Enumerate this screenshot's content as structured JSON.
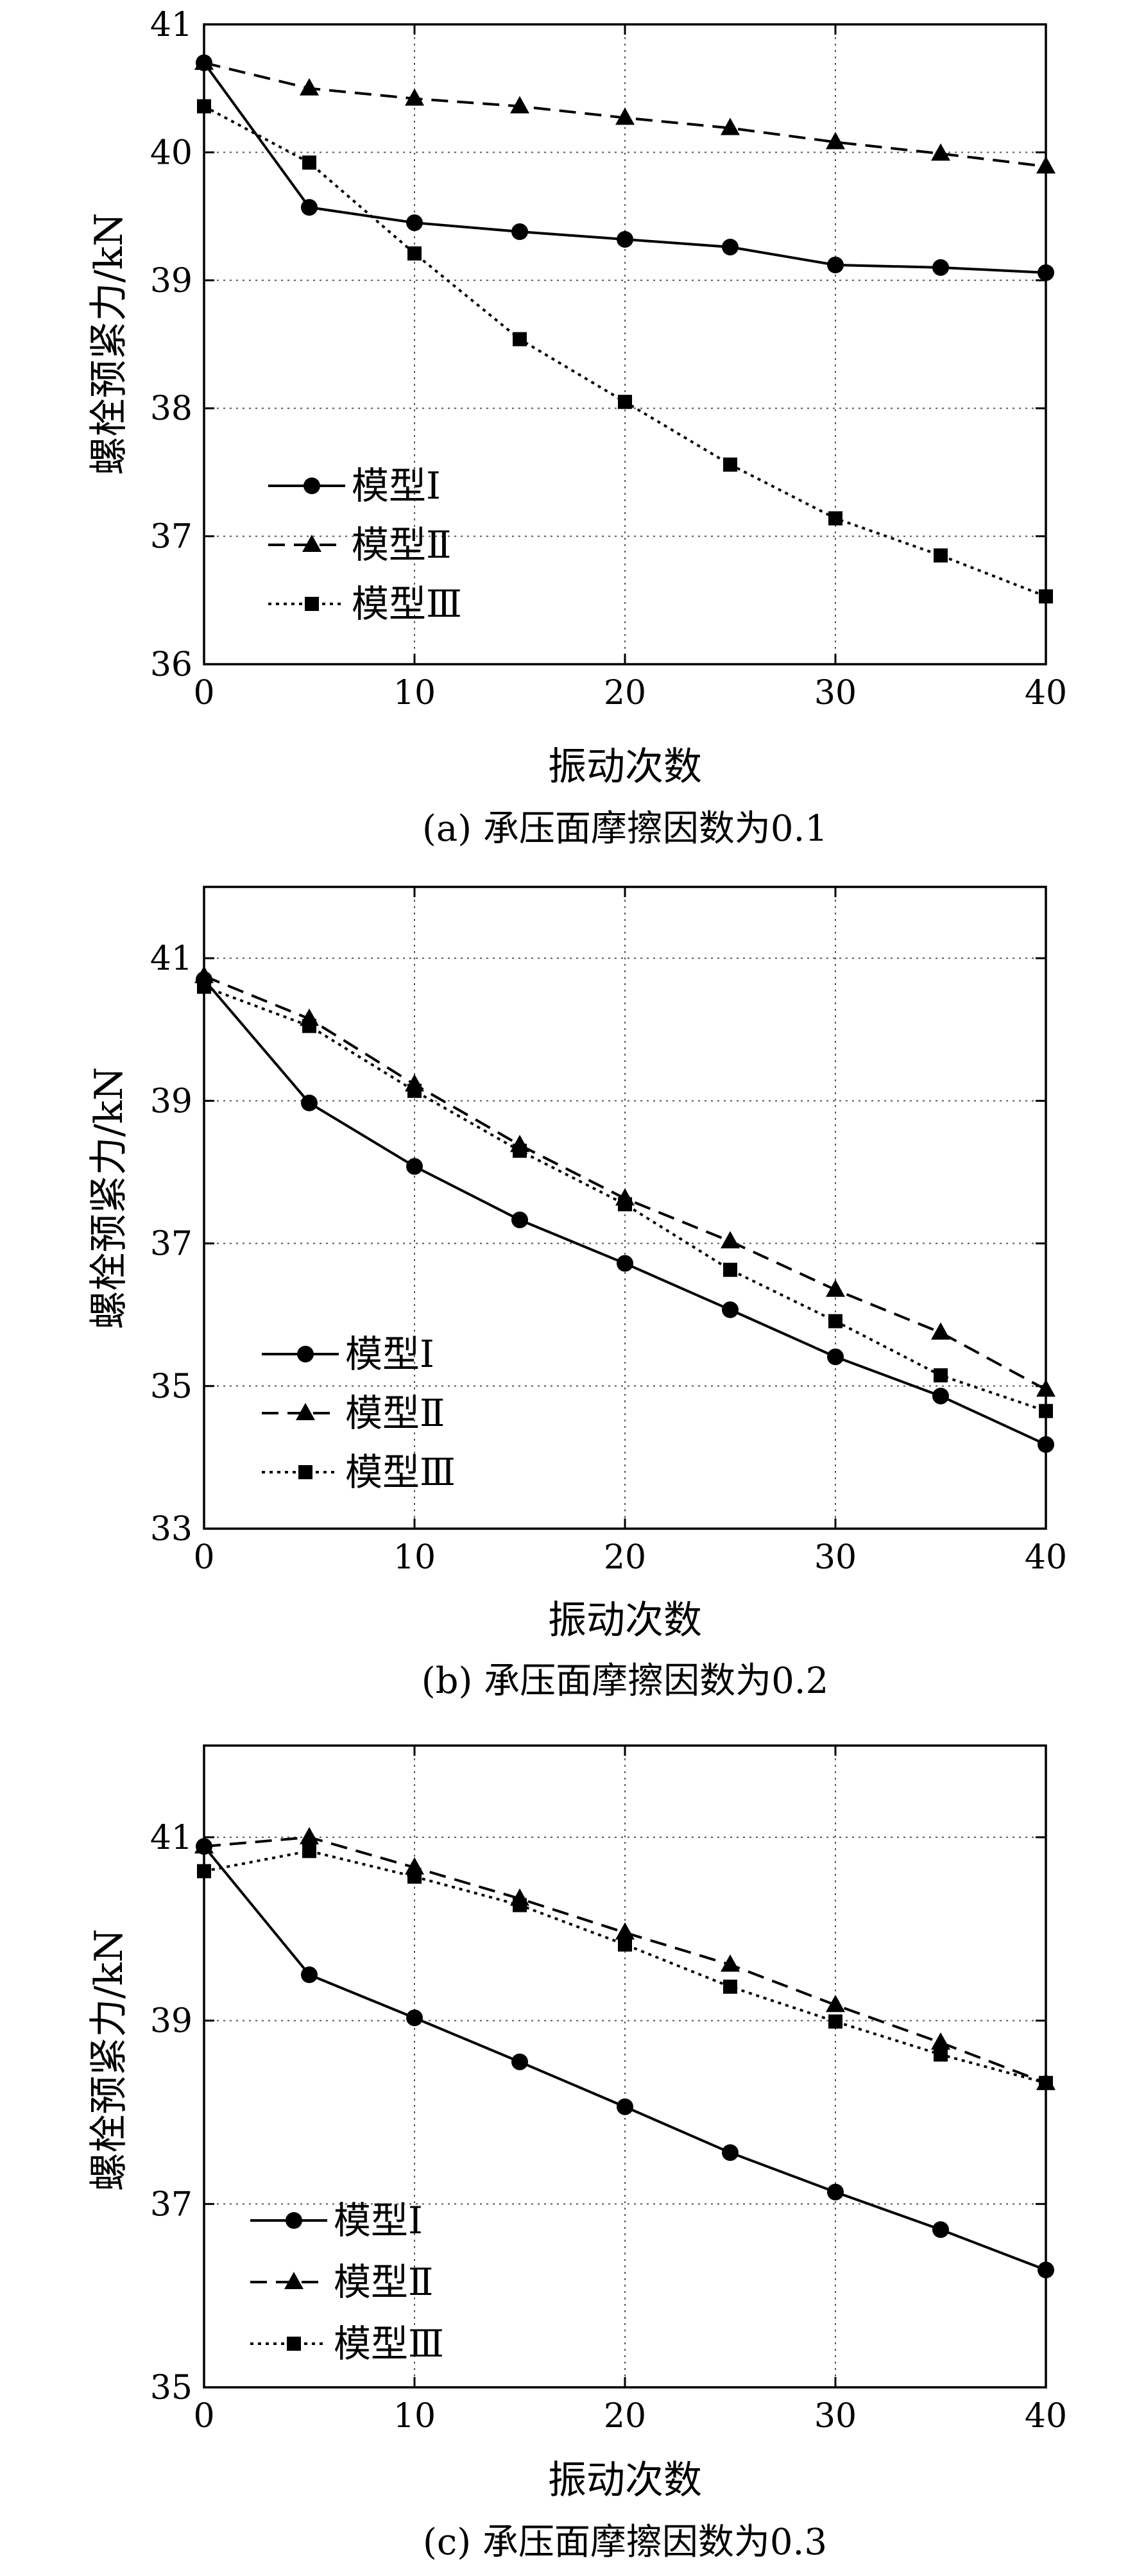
{
  "chart_data": [
    {
      "type": "line",
      "caption": "(a) 承压面摩擦因数为0.1",
      "xlabel": "振动次数",
      "ylabel": "螺栓预紧力/kN",
      "xlim": [
        0,
        40
      ],
      "ylim": [
        36,
        41
      ],
      "xticks": [
        0,
        10,
        20,
        30,
        40
      ],
      "yticks": [
        36,
        37,
        38,
        39,
        40,
        41
      ],
      "grid": true,
      "legend_position": "lower-left",
      "x": [
        0,
        5,
        10,
        15,
        20,
        25,
        30,
        35,
        40
      ],
      "series": [
        {
          "name": "模型Ⅰ",
          "style": "solid",
          "marker": "circle",
          "values": [
            40.7,
            39.57,
            39.45,
            39.38,
            39.32,
            39.26,
            39.12,
            39.1,
            39.06
          ]
        },
        {
          "name": "模型Ⅱ",
          "style": "dashed",
          "marker": "triangle",
          "values": [
            40.7,
            40.5,
            40.42,
            40.36,
            40.27,
            40.19,
            40.08,
            39.99,
            39.89
          ]
        },
        {
          "name": "模型Ⅲ",
          "style": "dotted",
          "marker": "square",
          "values": [
            40.36,
            39.92,
            39.21,
            38.54,
            38.05,
            37.56,
            37.14,
            36.85,
            36.53
          ]
        }
      ]
    },
    {
      "type": "line",
      "caption": "(b) 承压面摩擦因数为0.2",
      "xlabel": "振动次数",
      "ylabel": "螺栓预紧力/kN",
      "xlim": [
        0,
        40
      ],
      "ylim": [
        33,
        42
      ],
      "xticks": [
        0,
        10,
        20,
        30,
        40
      ],
      "yticks": [
        33,
        35,
        37,
        39,
        41
      ],
      "grid": true,
      "legend_position": "lower-left",
      "x": [
        0,
        5,
        10,
        15,
        20,
        25,
        30,
        35,
        40
      ],
      "series": [
        {
          "name": "模型Ⅰ",
          "style": "solid",
          "marker": "circle",
          "values": [
            40.7,
            38.97,
            38.08,
            37.33,
            36.72,
            36.07,
            35.41,
            34.86,
            34.18
          ]
        },
        {
          "name": "模型Ⅱ",
          "style": "dashed",
          "marker": "triangle",
          "values": [
            40.75,
            40.15,
            39.23,
            38.38,
            37.63,
            37.03,
            36.35,
            35.75,
            34.95
          ]
        },
        {
          "name": "模型Ⅲ",
          "style": "dotted",
          "marker": "square",
          "values": [
            40.6,
            40.05,
            39.14,
            38.3,
            37.55,
            36.63,
            35.91,
            35.15,
            34.65
          ]
        }
      ]
    },
    {
      "type": "line",
      "caption": "(c) 承压面摩擦因数为0.3",
      "xlabel": "振动次数",
      "ylabel": "螺栓预紧力/kN",
      "xlim": [
        0,
        40
      ],
      "ylim": [
        35,
        42
      ],
      "xticks": [
        0,
        10,
        20,
        30,
        40
      ],
      "yticks": [
        35,
        37,
        39,
        41
      ],
      "grid": true,
      "legend_position": "lower-left",
      "x": [
        0,
        5,
        10,
        15,
        20,
        25,
        30,
        35,
        40
      ],
      "series": [
        {
          "name": "模型Ⅰ",
          "style": "solid",
          "marker": "circle",
          "values": [
            40.9,
            39.5,
            39.03,
            38.55,
            38.06,
            37.56,
            37.13,
            36.72,
            36.28
          ]
        },
        {
          "name": "模型Ⅱ",
          "style": "dashed",
          "marker": "triangle",
          "values": [
            40.9,
            41.0,
            40.67,
            40.33,
            39.96,
            39.61,
            39.17,
            38.76,
            38.32
          ]
        },
        {
          "name": "模型Ⅲ",
          "style": "dotted",
          "marker": "square",
          "values": [
            40.63,
            40.85,
            40.57,
            40.26,
            39.83,
            39.37,
            38.99,
            38.63,
            38.32
          ]
        }
      ]
    }
  ]
}
